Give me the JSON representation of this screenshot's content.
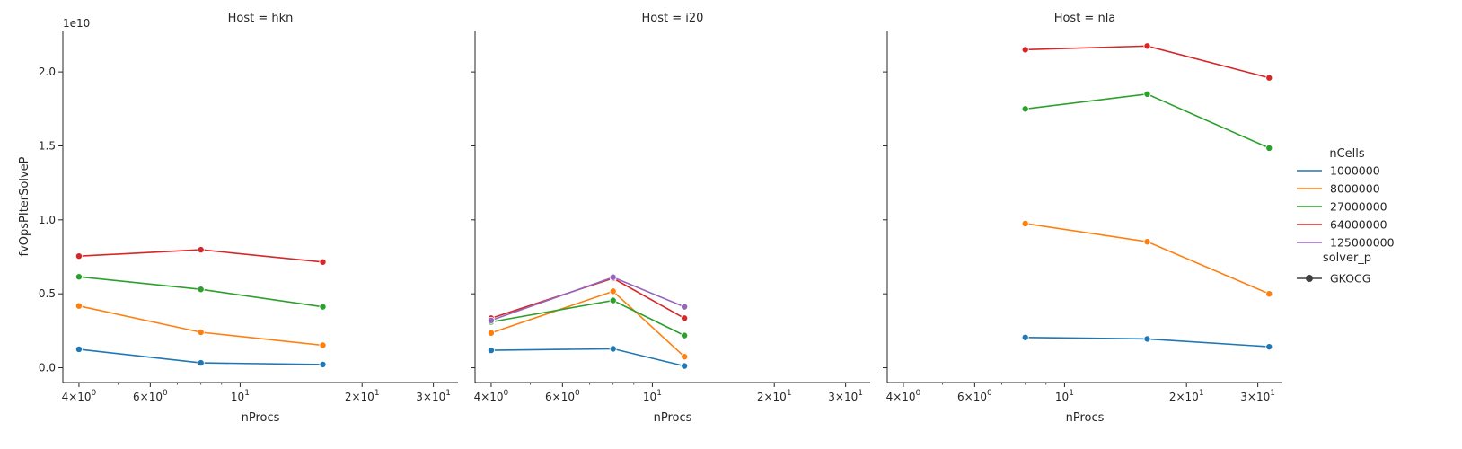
{
  "chart_data": {
    "type": "line",
    "ylabel": "fvOpsPIterSolveP",
    "xlabel": "nProcs",
    "y_offset_label": "1e10",
    "y_scale": 10000000000,
    "ylim": [
      -0.1,
      2.28
    ],
    "xlim": [
      3.65,
      34.5
    ],
    "x_scale": "log",
    "y_ticks": [
      0.0,
      0.5,
      1.0,
      1.5,
      2.0
    ],
    "y_tick_labels": [
      "0.0",
      "0.5",
      "1.0",
      "1.5",
      "2.0"
    ],
    "x_ticks": [
      4,
      6,
      10,
      20,
      30
    ],
    "x_tick_labels": [
      {
        "base": "4",
        "sep": "×",
        "ten": "10",
        "exp": "0"
      },
      {
        "base": "6",
        "sep": "×",
        "ten": "10",
        "exp": "0"
      },
      {
        "base": "",
        "sep": "",
        "ten": "10",
        "exp": "1"
      },
      {
        "base": "2",
        "sep": "×",
        "ten": "10",
        "exp": "1"
      },
      {
        "base": "3",
        "sep": "×",
        "ten": "10",
        "exp": "1"
      }
    ],
    "grid": false,
    "legend": {
      "placement": "right",
      "title": "nCells",
      "entries": [
        {
          "label": "1000000",
          "color": "#1f77b4"
        },
        {
          "label": "8000000",
          "color": "#ff7f0e"
        },
        {
          "label": "27000000",
          "color": "#2ca02c"
        },
        {
          "label": "64000000",
          "color": "#d62728"
        },
        {
          "label": "125000000",
          "color": "#9467bd"
        }
      ],
      "style_title": "solver_p",
      "style_entries": [
        {
          "label": "GKOCG",
          "marker": "circle"
        }
      ]
    },
    "panels": [
      {
        "title": "Host = hkn",
        "series": [
          {
            "name": "1000000",
            "color": "#1f77b4",
            "x": [
              4,
              8,
              16
            ],
            "y": [
              0.125,
              0.033,
              0.022
            ]
          },
          {
            "name": "8000000",
            "color": "#ff7f0e",
            "x": [
              4,
              8,
              16
            ],
            "y": [
              0.418,
              0.24,
              0.152
            ]
          },
          {
            "name": "27000000",
            "color": "#2ca02c",
            "x": [
              4,
              8,
              16
            ],
            "y": [
              0.615,
              0.53,
              0.412
            ]
          },
          {
            "name": "64000000",
            "color": "#d62728",
            "x": [
              4,
              8,
              16
            ],
            "y": [
              0.755,
              0.798,
              0.715
            ]
          }
        ]
      },
      {
        "title": "Host = i20",
        "series": [
          {
            "name": "1000000",
            "color": "#1f77b4",
            "x": [
              4,
              8,
              12
            ],
            "y": [
              0.118,
              0.128,
              0.012
            ]
          },
          {
            "name": "8000000",
            "color": "#ff7f0e",
            "x": [
              4,
              8,
              12
            ],
            "y": [
              0.235,
              0.517,
              0.075
            ]
          },
          {
            "name": "27000000",
            "color": "#2ca02c",
            "x": [
              4,
              8,
              12
            ],
            "y": [
              0.31,
              0.455,
              0.218
            ]
          },
          {
            "name": "64000000",
            "color": "#d62728",
            "x": [
              4,
              8,
              12
            ],
            "y": [
              0.335,
              0.605,
              0.335
            ]
          },
          {
            "name": "125000000",
            "color": "#9467bd",
            "x": [
              4,
              8,
              12
            ],
            "y": [
              0.32,
              0.612,
              0.412
            ]
          }
        ]
      },
      {
        "title": "Host = nla",
        "series": [
          {
            "name": "1000000",
            "color": "#1f77b4",
            "x": [
              8,
              16,
              32
            ],
            "y": [
              0.205,
              0.195,
              0.142
            ]
          },
          {
            "name": "8000000",
            "color": "#ff7f0e",
            "x": [
              8,
              16,
              32
            ],
            "y": [
              0.975,
              0.852,
              0.5
            ]
          },
          {
            "name": "27000000",
            "color": "#2ca02c",
            "x": [
              8,
              16,
              32
            ],
            "y": [
              1.75,
              1.85,
              1.485
            ]
          },
          {
            "name": "64000000",
            "color": "#d62728",
            "x": [
              8,
              16,
              32
            ],
            "y": [
              2.15,
              2.175,
              1.96
            ]
          }
        ]
      }
    ]
  }
}
